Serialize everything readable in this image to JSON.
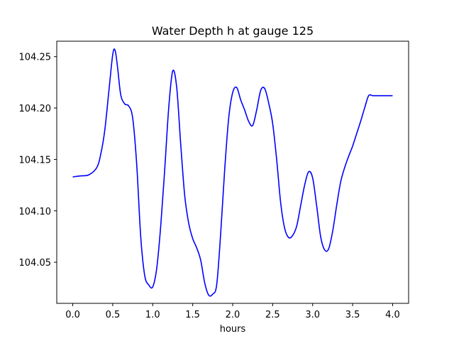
{
  "chart_data": {
    "type": "line",
    "title": "Water Depth h at gauge 125",
    "xlabel": "hours",
    "ylabel": "",
    "xlim": [
      -0.2,
      4.2
    ],
    "ylim": [
      104.01,
      104.265
    ],
    "xticks": [
      0.0,
      0.5,
      1.0,
      1.5,
      2.0,
      2.5,
      3.0,
      3.5,
      4.0
    ],
    "xtick_labels": [
      "0.0",
      "0.5",
      "1.0",
      "1.5",
      "2.0",
      "2.5",
      "3.0",
      "3.5",
      "4.0"
    ],
    "yticks": [
      104.05,
      104.1,
      104.15,
      104.2,
      104.25
    ],
    "ytick_labels": [
      "104.05",
      "104.10",
      "104.15",
      "104.20",
      "104.25"
    ],
    "grid": false,
    "series": [
      {
        "color": "#0000ff",
        "x": [
          0.0,
          0.1,
          0.2,
          0.3,
          0.35,
          0.4,
          0.45,
          0.5,
          0.53,
          0.56,
          0.6,
          0.65,
          0.7,
          0.75,
          0.8,
          0.85,
          0.9,
          0.95,
          1.0,
          1.05,
          1.1,
          1.15,
          1.2,
          1.25,
          1.3,
          1.35,
          1.4,
          1.45,
          1.5,
          1.55,
          1.6,
          1.65,
          1.7,
          1.75,
          1.8,
          1.85,
          1.9,
          1.95,
          2.0,
          2.05,
          2.1,
          2.15,
          2.2,
          2.25,
          2.3,
          2.35,
          2.4,
          2.45,
          2.5,
          2.55,
          2.6,
          2.65,
          2.7,
          2.75,
          2.8,
          2.85,
          2.9,
          2.95,
          3.0,
          3.05,
          3.1,
          3.15,
          3.2,
          3.25,
          3.3,
          3.35,
          3.4,
          3.45,
          3.5,
          3.55,
          3.6,
          3.65,
          3.7,
          3.75,
          3.8,
          3.85,
          3.9,
          3.95,
          4.0
        ],
        "y": [
          104.133,
          104.134,
          104.135,
          104.142,
          104.155,
          104.178,
          104.215,
          104.252,
          104.256,
          104.24,
          104.213,
          104.204,
          104.202,
          104.19,
          104.145,
          104.075,
          104.037,
          104.028,
          104.026,
          104.044,
          104.085,
          104.14,
          104.2,
          104.236,
          104.22,
          104.165,
          104.115,
          104.088,
          104.073,
          104.064,
          104.052,
          104.03,
          104.018,
          104.019,
          104.028,
          104.078,
          104.14,
          104.19,
          104.215,
          104.22,
          104.208,
          104.198,
          104.187,
          104.183,
          104.198,
          104.217,
          104.219,
          104.205,
          104.185,
          104.15,
          104.108,
          104.083,
          104.074,
          104.076,
          104.085,
          104.105,
          104.125,
          104.138,
          104.132,
          104.105,
          104.075,
          104.062,
          104.063,
          104.08,
          104.105,
          104.128,
          104.142,
          104.153,
          104.163,
          104.175,
          104.187,
          104.2,
          104.212,
          104.212,
          104.212,
          104.212,
          104.212,
          104.212,
          104.212
        ]
      }
    ]
  }
}
